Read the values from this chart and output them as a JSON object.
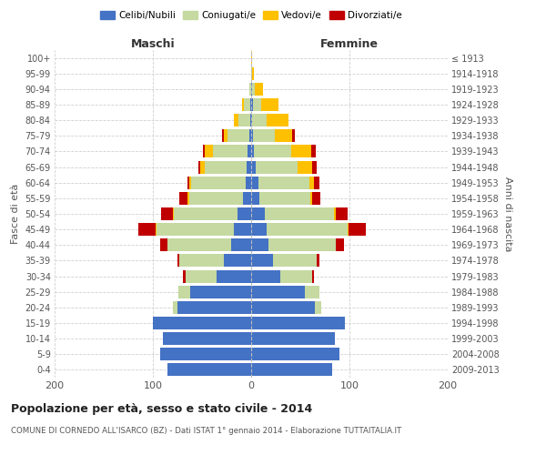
{
  "age_groups": [
    "0-4",
    "5-9",
    "10-14",
    "15-19",
    "20-24",
    "25-29",
    "30-34",
    "35-39",
    "40-44",
    "45-49",
    "50-54",
    "55-59",
    "60-64",
    "65-69",
    "70-74",
    "75-79",
    "80-84",
    "85-89",
    "90-94",
    "95-99",
    "100+"
  ],
  "birth_years": [
    "2009-2013",
    "2004-2008",
    "1999-2003",
    "1994-1998",
    "1989-1993",
    "1984-1988",
    "1979-1983",
    "1974-1978",
    "1969-1973",
    "1964-1968",
    "1959-1963",
    "1954-1958",
    "1949-1953",
    "1944-1948",
    "1939-1943",
    "1934-1938",
    "1929-1933",
    "1924-1928",
    "1919-1923",
    "1914-1918",
    "≤ 1913"
  ],
  "maschi": {
    "celibi": [
      85,
      93,
      90,
      100,
      75,
      62,
      35,
      28,
      20,
      18,
      14,
      8,
      6,
      5,
      4,
      2,
      1,
      1,
      0,
      0,
      0
    ],
    "coniugati": [
      0,
      0,
      0,
      0,
      5,
      12,
      32,
      45,
      65,
      78,
      65,
      55,
      55,
      42,
      35,
      22,
      12,
      6,
      2,
      0,
      0
    ],
    "vedovi": [
      0,
      0,
      0,
      0,
      0,
      0,
      0,
      0,
      0,
      1,
      1,
      2,
      2,
      5,
      8,
      4,
      5,
      2,
      0,
      0,
      0
    ],
    "divorziati": [
      0,
      0,
      0,
      0,
      0,
      0,
      2,
      2,
      8,
      18,
      12,
      8,
      2,
      2,
      2,
      2,
      0,
      0,
      0,
      0,
      0
    ]
  },
  "femmine": {
    "nubili": [
      82,
      90,
      85,
      95,
      65,
      55,
      30,
      22,
      18,
      16,
      14,
      8,
      7,
      5,
      3,
      2,
      1,
      2,
      1,
      0,
      0
    ],
    "coniugate": [
      0,
      0,
      0,
      0,
      6,
      14,
      32,
      45,
      68,
      82,
      70,
      52,
      52,
      42,
      38,
      22,
      15,
      8,
      3,
      1,
      0
    ],
    "vedove": [
      0,
      0,
      0,
      0,
      0,
      0,
      0,
      0,
      0,
      1,
      2,
      2,
      5,
      15,
      20,
      18,
      22,
      18,
      8,
      2,
      1
    ],
    "divorziate": [
      0,
      0,
      0,
      0,
      0,
      0,
      2,
      2,
      8,
      18,
      12,
      8,
      5,
      5,
      5,
      2,
      0,
      0,
      0,
      0,
      0
    ]
  },
  "colors": {
    "celibi": "#4472c4",
    "coniugati": "#c5d9a0",
    "vedovi": "#ffc000",
    "divorziati": "#c00000"
  },
  "legend_labels": [
    "Celibi/Nubili",
    "Coniugati/e",
    "Vedovi/e",
    "Divorziati/e"
  ],
  "title": "Popolazione per età, sesso e stato civile - 2014",
  "subtitle": "COMUNE DI CORNEDO ALL'ISARCO (BZ) - Dati ISTAT 1° gennaio 2014 - Elaborazione TUTTAITALIA.IT",
  "xlabel_left": "Maschi",
  "xlabel_right": "Femmine",
  "ylabel_left": "Fasce di età",
  "ylabel_right": "Anni di nascita",
  "xlim": 200,
  "background_color": "#ffffff"
}
